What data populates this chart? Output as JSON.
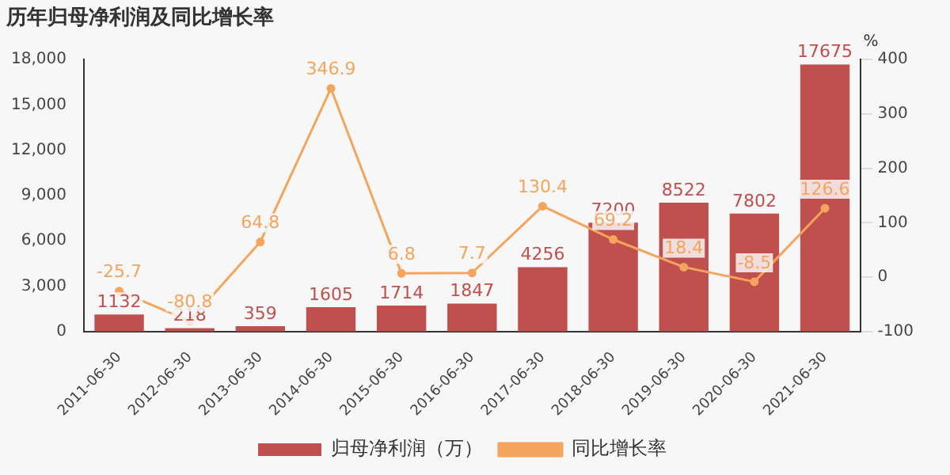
{
  "chart_data": {
    "type": "bar",
    "title": "历年归母净利润及同比增长率",
    "y2label": "%",
    "categories": [
      "2011-06-30",
      "2012-06-30",
      "2013-06-30",
      "2014-06-30",
      "2015-06-30",
      "2016-06-30",
      "2017-06-30",
      "2018-06-30",
      "2019-06-30",
      "2020-06-30",
      "2021-06-30"
    ],
    "series": [
      {
        "name": "归母净利润（万）",
        "color": "#c0504d",
        "values": [
          1132,
          218,
          359,
          1605,
          1714,
          1847,
          4256,
          7200,
          8522,
          7802,
          17675
        ]
      },
      {
        "name": "同比增长率",
        "type": "line",
        "axis": "y2",
        "color": "#f5a45d",
        "marker": "circle",
        "values": [
          -25.7,
          -80.8,
          64.8,
          346.9,
          6.8,
          7.7,
          130.4,
          69.2,
          18.4,
          -8.5,
          126.6
        ]
      }
    ],
    "ylim": [
      0,
      18000
    ],
    "yticks": [
      {
        "value": 0,
        "label": "0"
      },
      {
        "value": 3000,
        "label": "3,000"
      },
      {
        "value": 6000,
        "label": "6,000"
      },
      {
        "value": 9000,
        "label": "9,000"
      },
      {
        "value": 12000,
        "label": "12,000"
      },
      {
        "value": 15000,
        "label": "15,000"
      },
      {
        "value": 18000,
        "label": "18,000"
      }
    ],
    "y2lim": [
      -100,
      400
    ],
    "y2ticks": [
      -100,
      0,
      100,
      200,
      300,
      400
    ],
    "data_labels": true,
    "legend": "bottom",
    "grid": false
  }
}
